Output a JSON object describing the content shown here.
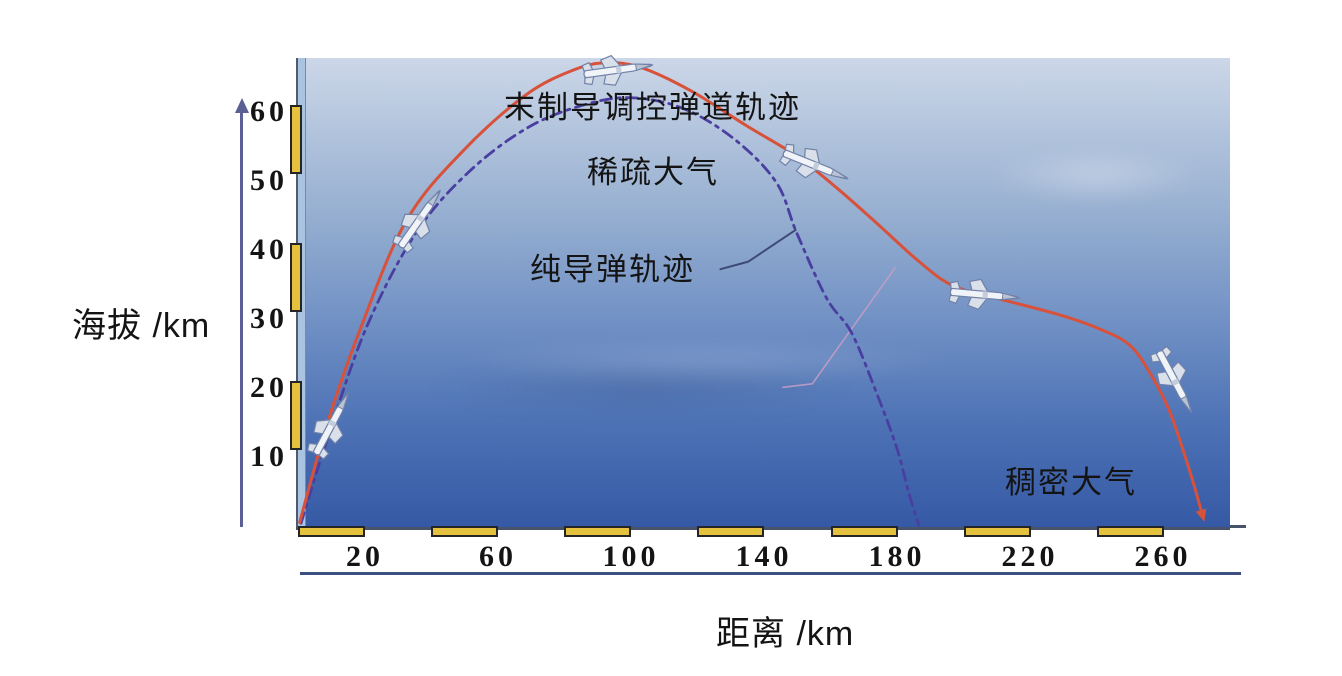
{
  "page": {
    "background": "#ffffff"
  },
  "colors": {
    "sky_top": "#ccd7e8",
    "sky_bottom": "#3659a5",
    "scale_bar_fill": "#e5c23e",
    "scale_bar_border": "#252525",
    "axis_baseline": "#47536b",
    "underline": "#3d4e80",
    "y_axis_arrow": "#5a5f96",
    "guided_curve": "#d8513a",
    "pure_curve": "#4a3fa0",
    "text": "#141414"
  },
  "chart_data": {
    "type": "line",
    "title": "",
    "xlabel": "距离 /km",
    "ylabel": "海拔 /km",
    "xlim": [
      0,
      280
    ],
    "ylim": [
      0,
      67.8
    ],
    "x_ticks": [
      20,
      60,
      100,
      140,
      180,
      220,
      260
    ],
    "y_ticks": [
      10,
      20,
      30,
      40,
      50,
      60
    ],
    "x_scale_bars_km": [
      [
        0,
        20
      ],
      [
        40,
        60
      ],
      [
        80,
        100
      ],
      [
        120,
        140
      ],
      [
        160,
        180
      ],
      [
        200,
        220
      ],
      [
        240,
        260
      ]
    ],
    "y_scale_bars_km": [
      [
        10,
        20
      ],
      [
        30,
        40
      ],
      [
        50,
        60
      ]
    ],
    "grid": false,
    "legend_position": "none",
    "series": [
      {
        "name": "末制导调控弹道轨迹",
        "line": "solid",
        "color": "#d8513a",
        "width": 3,
        "end_marker": "arrow",
        "points_km": [
          [
            0.5,
            0.5
          ],
          [
            8.4,
            14.2
          ],
          [
            18.3,
            28.0
          ],
          [
            32.5,
            44.2
          ],
          [
            49.9,
            54.5
          ],
          [
            68.6,
            62.5
          ],
          [
            83.0,
            66.1
          ],
          [
            92.6,
            67.1
          ],
          [
            103.2,
            66.4
          ],
          [
            118.2,
            63.0
          ],
          [
            134.7,
            58.0
          ],
          [
            149.8,
            53.6
          ],
          [
            161.8,
            49.0
          ],
          [
            173.8,
            43.9
          ],
          [
            185.9,
            38.6
          ],
          [
            196.4,
            34.9
          ],
          [
            209.9,
            33.0
          ],
          [
            228.0,
            30.7
          ],
          [
            240.0,
            28.7
          ],
          [
            249.9,
            26.2
          ],
          [
            256.5,
            21.7
          ],
          [
            261.7,
            16.8
          ],
          [
            265.9,
            11.0
          ],
          [
            269.2,
            5.9
          ],
          [
            271.3,
            2.3
          ]
        ]
      },
      {
        "name": "纯导弹轨迹",
        "line": "dashdot",
        "color": "#4a3fa0",
        "width": 2.8,
        "end_marker": "none",
        "points_km": [
          [
            0.9,
            0.4
          ],
          [
            8.4,
            12.0
          ],
          [
            20.5,
            28.7
          ],
          [
            35.5,
            42.5
          ],
          [
            52.0,
            51.6
          ],
          [
            70.1,
            58.0
          ],
          [
            88.1,
            61.3
          ],
          [
            101.7,
            62.0
          ],
          [
            116.7,
            60.3
          ],
          [
            131.7,
            55.8
          ],
          [
            143.8,
            49.7
          ],
          [
            149.8,
            42.5
          ],
          [
            158.8,
            33.0
          ],
          [
            166.3,
            28.0
          ],
          [
            173.8,
            19.3
          ],
          [
            179.9,
            11.3
          ],
          [
            183.5,
            4.8
          ],
          [
            186.5,
            0.1
          ]
        ]
      }
    ],
    "annotations": {
      "guided_label": "末制导调控弹道轨迹",
      "thin_atmosphere": "稀疏大气",
      "pure_missile_label": "纯导弹轨迹",
      "dense_atmosphere": "稠密大气"
    },
    "leaders": [
      {
        "name": "pure-missile-leader",
        "color": "#3d4a78",
        "width": 2,
        "opacity": 1,
        "points_km": [
          [
            126.9,
            37.2
          ],
          [
            135.3,
            38.3
          ],
          [
            149.5,
            42.9
          ]
        ]
      },
      {
        "name": "faint-pink-leader",
        "color": "#c79ec6",
        "width": 1.6,
        "opacity": 0.85,
        "points_km": [
          [
            145.7,
            20.1
          ],
          [
            154.5,
            20.6
          ],
          [
            179.4,
            37.4
          ]
        ]
      }
    ],
    "missile_markers_km": [
      {
        "x": 10.2,
        "y": 14.8,
        "angle": -62
      },
      {
        "x": 36.7,
        "y": 44.5,
        "angle": -55
      },
      {
        "x": 96.2,
        "y": 66.1,
        "angle": -8
      },
      {
        "x": 155.5,
        "y": 52.2,
        "angle": 22
      },
      {
        "x": 206.3,
        "y": 33.5,
        "angle": 5
      },
      {
        "x": 263.5,
        "y": 20.9,
        "angle": 62
      }
    ]
  }
}
